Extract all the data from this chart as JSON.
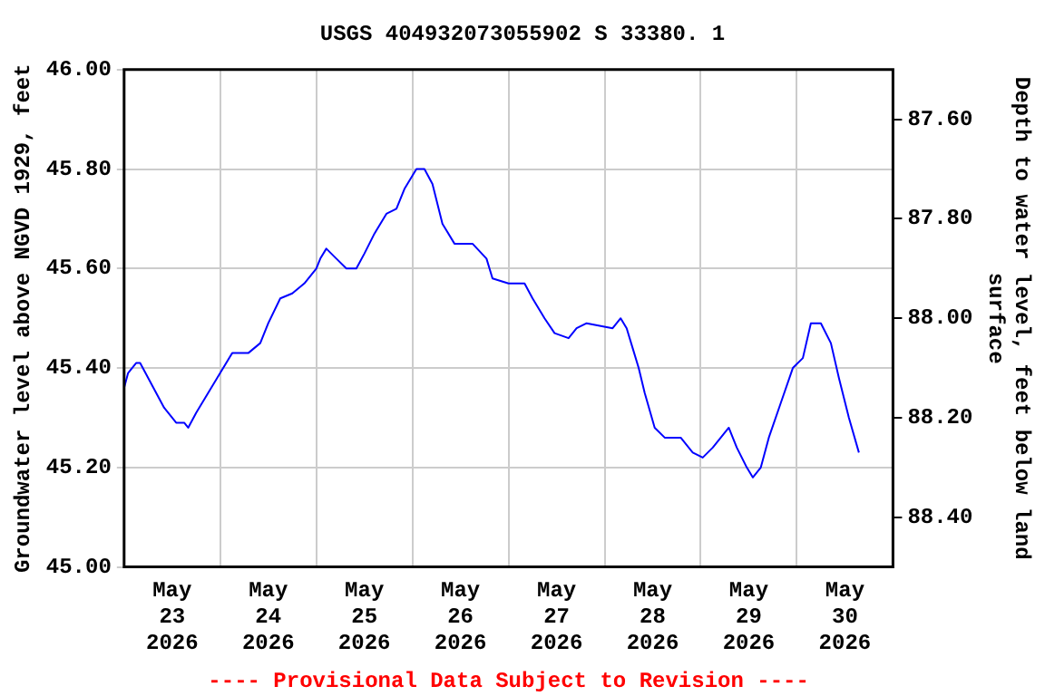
{
  "chart_data": {
    "type": "line",
    "title": "USGS 404932073055902 S 33380. 1",
    "ylabel": "Groundwater level above NGVD 1929, feet",
    "y2label": "Depth to water level, feet below land surface",
    "annotations": [
      "---- Provisional Data Subject to Revision ----"
    ],
    "xlim": [
      "2026-05-23T00:00",
      "2026-05-31T00:00"
    ],
    "xticks": [
      {
        "value": "2026-05-23T12:00",
        "label": "May 23 2026"
      },
      {
        "value": "2026-05-24T00:00",
        "label": null
      },
      {
        "value": "2026-05-24T12:00",
        "label": "May 24 2026"
      },
      {
        "value": "2026-05-25T00:00",
        "label": null
      },
      {
        "value": "2026-05-25T12:00",
        "label": "May 25 2026"
      },
      {
        "value": "2026-05-26T00:00",
        "label": null
      },
      {
        "value": "2026-05-26T12:00",
        "label": "May 26 2026"
      },
      {
        "value": "2026-05-27T00:00",
        "label": null
      },
      {
        "value": "2026-05-27T12:00",
        "label": "May 27 2026"
      },
      {
        "value": "2026-05-28T00:00",
        "label": null
      },
      {
        "value": "2026-05-28T12:00",
        "label": "May 28 2026"
      },
      {
        "value": "2026-05-29T00:00",
        "label": null
      },
      {
        "value": "2026-05-29T12:00",
        "label": "May 29 2026"
      },
      {
        "value": "2026-05-30T00:00",
        "label": null
      },
      {
        "value": "2026-05-30T12:00",
        "label": "May 30 2026"
      }
    ],
    "ylim": [
      45.0,
      46.0
    ],
    "yticks": [
      {
        "value": 45.0,
        "label": "45.00"
      },
      {
        "value": 45.2,
        "label": "45.20"
      },
      {
        "value": 45.4,
        "label": "45.40"
      },
      {
        "value": 45.6,
        "label": "45.60"
      },
      {
        "value": 45.8,
        "label": "45.80"
      },
      {
        "value": 46.0,
        "label": "46.00"
      }
    ],
    "y2lim": [
      88.5,
      87.5
    ],
    "y2ticks": [
      {
        "value": 87.6,
        "label": "87.60"
      },
      {
        "value": 87.8,
        "label": "87.80"
      },
      {
        "value": 88.0,
        "label": "88.00"
      },
      {
        "value": 88.2,
        "label": "88.20"
      },
      {
        "value": 88.4,
        "label": "88.40"
      }
    ],
    "grid": true,
    "legend": false,
    "marker": "none",
    "line_style": "solid",
    "series": [
      {
        "color": "#0000ff",
        "x": [
          "2026-05-23T00:00",
          "2026-05-23T01:00",
          "2026-05-23T03:00",
          "2026-05-23T04:00",
          "2026-05-23T06:00",
          "2026-05-23T08:00",
          "2026-05-23T10:00",
          "2026-05-23T13:00",
          "2026-05-23T15:00",
          "2026-05-23T16:00",
          "2026-05-23T18:00",
          "2026-05-23T21:00",
          "2026-05-24T00:00",
          "2026-05-24T03:00",
          "2026-05-24T07:00",
          "2026-05-24T10:00",
          "2026-05-24T12:00",
          "2026-05-24T15:00",
          "2026-05-24T18:00",
          "2026-05-24T21:00",
          "2026-05-25T00:00",
          "2026-05-25T01:00",
          "2026-05-25T02:30",
          "2026-05-25T05:00",
          "2026-05-25T07:30",
          "2026-05-25T10:00",
          "2026-05-25T12:00",
          "2026-05-25T14:30",
          "2026-05-25T17:30",
          "2026-05-25T20:00",
          "2026-05-25T22:00",
          "2026-05-26T01:00",
          "2026-05-26T03:00",
          "2026-05-26T05:00",
          "2026-05-26T07:30",
          "2026-05-26T10:30",
          "2026-05-26T15:00",
          "2026-05-26T18:30",
          "2026-05-26T20:00",
          "2026-05-27T00:00",
          "2026-05-27T04:00",
          "2026-05-27T06:00",
          "2026-05-27T09:00",
          "2026-05-27T11:30",
          "2026-05-27T15:00",
          "2026-05-27T17:00",
          "2026-05-27T19:30",
          "2026-05-28T02:00",
          "2026-05-28T04:00",
          "2026-05-28T05:30",
          "2026-05-28T07:00",
          "2026-05-28T08:30",
          "2026-05-28T10:00",
          "2026-05-28T12:30",
          "2026-05-28T15:00",
          "2026-05-28T19:00",
          "2026-05-28T22:00",
          "2026-05-29T00:30",
          "2026-05-29T03:00",
          "2026-05-29T07:00",
          "2026-05-29T09:00",
          "2026-05-29T11:30",
          "2026-05-29T13:00",
          "2026-05-29T15:00",
          "2026-05-29T17:00",
          "2026-05-29T20:00",
          "2026-05-29T23:00",
          "2026-05-30T01:30",
          "2026-05-30T03:30",
          "2026-05-30T06:00",
          "2026-05-30T08:30",
          "2026-05-30T10:30",
          "2026-05-30T13:00",
          "2026-05-30T15:30"
        ],
        "values": [
          45.36,
          45.39,
          45.41,
          45.41,
          45.38,
          45.35,
          45.32,
          45.29,
          45.29,
          45.28,
          45.31,
          45.35,
          45.39,
          45.43,
          45.43,
          45.45,
          45.49,
          45.54,
          45.55,
          45.57,
          45.6,
          45.62,
          45.64,
          45.62,
          45.6,
          45.6,
          45.63,
          45.67,
          45.71,
          45.72,
          45.76,
          45.8,
          45.8,
          45.77,
          45.69,
          45.65,
          45.65,
          45.62,
          45.58,
          45.57,
          45.57,
          45.54,
          45.5,
          45.47,
          45.46,
          45.48,
          45.49,
          45.48,
          45.5,
          45.48,
          45.44,
          45.4,
          45.35,
          45.28,
          45.26,
          45.26,
          45.23,
          45.22,
          45.24,
          45.28,
          45.24,
          45.2,
          45.18,
          45.2,
          45.26,
          45.33,
          45.4,
          45.42,
          45.49,
          45.49,
          45.45,
          45.38,
          45.3,
          45.23
        ]
      }
    ]
  }
}
